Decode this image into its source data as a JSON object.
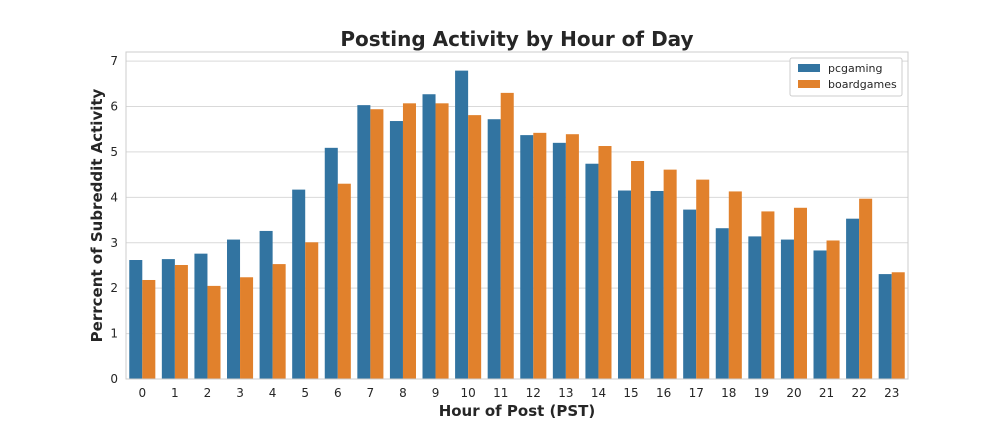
{
  "chart_data": {
    "type": "bar",
    "title": "Posting Activity by Hour of Day",
    "xlabel": "Hour of Post (PST)",
    "ylabel": "Perrcent of Subreddit Activity",
    "categories": [
      "0",
      "1",
      "2",
      "3",
      "4",
      "5",
      "6",
      "7",
      "8",
      "9",
      "10",
      "11",
      "12",
      "13",
      "14",
      "15",
      "16",
      "17",
      "18",
      "19",
      "20",
      "21",
      "22",
      "23"
    ],
    "ylim": [
      0,
      7.2
    ],
    "yticks": [
      0,
      1,
      2,
      3,
      4,
      5,
      6,
      7
    ],
    "grid": true,
    "legend_position": "top-right",
    "series": [
      {
        "name": "pcgaming",
        "color": "#3274a1",
        "values": [
          2.62,
          2.64,
          2.76,
          3.07,
          3.26,
          4.17,
          5.09,
          6.03,
          5.68,
          6.27,
          6.79,
          5.72,
          5.37,
          5.2,
          4.74,
          4.15,
          4.14,
          3.73,
          3.32,
          3.14,
          3.07,
          2.83,
          3.53,
          2.31
        ]
      },
      {
        "name": "boardgames",
        "color": "#e1812c",
        "values": [
          2.18,
          2.51,
          2.05,
          2.24,
          2.53,
          3.01,
          4.3,
          5.94,
          6.07,
          6.07,
          5.81,
          6.3,
          5.42,
          5.39,
          5.13,
          4.8,
          4.61,
          4.39,
          4.13,
          3.69,
          3.77,
          3.05,
          3.97,
          2.35
        ]
      }
    ]
  }
}
